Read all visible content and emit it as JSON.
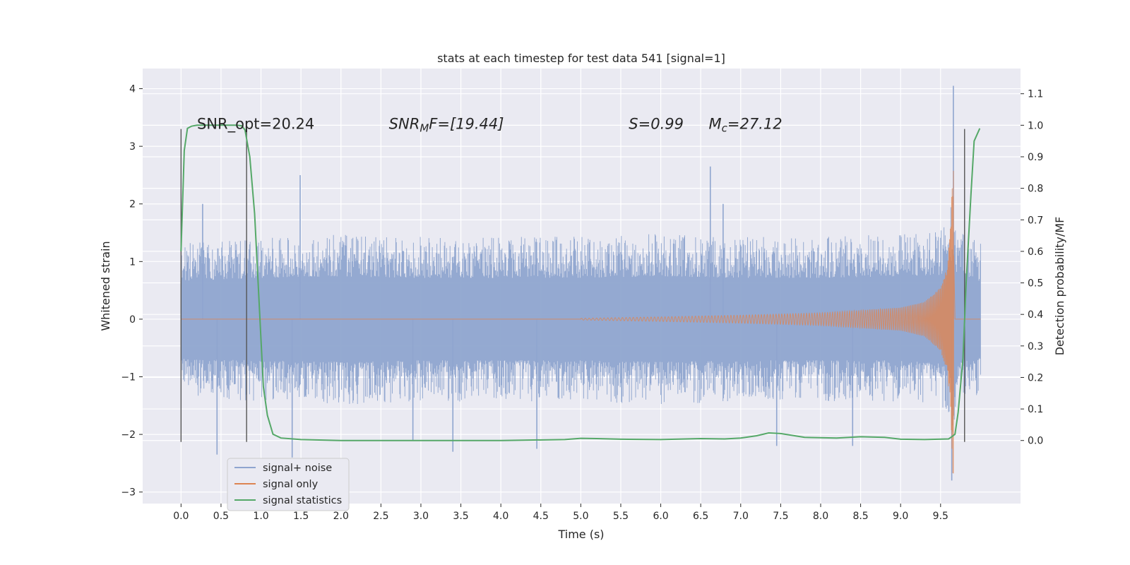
{
  "chart_data": {
    "type": "line",
    "title": "stats at each timestep for test data 541 [signal=1]",
    "xlabel": "Time (s)",
    "ylabel": "Whitened strain",
    "y2label": "Detection probability/MF",
    "xlim": [
      -0.48,
      10.5
    ],
    "ylim": [
      -3.2,
      4.35
    ],
    "y2lim": [
      -0.2,
      1.18
    ],
    "xticks": [
      "0.0",
      "0.5",
      "1.0",
      "1.5",
      "2.0",
      "2.5",
      "3.0",
      "3.5",
      "4.0",
      "4.5",
      "5.0",
      "5.5",
      "6.0",
      "6.5",
      "7.0",
      "7.5",
      "8.0",
      "8.5",
      "9.0",
      "9.5"
    ],
    "yticks": [
      "−3",
      "−2",
      "−1",
      "0",
      "1",
      "2",
      "3",
      "4"
    ],
    "y2ticks": [
      "0.0",
      "0.1",
      "0.2",
      "0.3",
      "0.4",
      "0.5",
      "0.6",
      "0.7",
      "0.8",
      "0.9",
      "1.0",
      "1.1"
    ],
    "grid": true,
    "legend_placement": "lower-left",
    "colors": {
      "noise": "#8fa5cf",
      "signal": "#dd8452",
      "stat": "#55a868",
      "vline": "#555555",
      "background": "#eaeaf2"
    },
    "series": [
      {
        "name": "signal+ noise",
        "envelope": {
          "t": [
            0.0,
            1.0,
            2.0,
            3.0,
            4.0,
            5.0,
            6.0,
            7.0,
            8.0,
            9.0,
            9.5,
            9.6,
            9.66,
            9.7,
            10.0
          ],
          "upper": [
            1.2,
            1.3,
            1.35,
            1.3,
            1.3,
            1.3,
            1.35,
            1.3,
            1.3,
            1.35,
            1.4,
            1.6,
            2.0,
            1.4,
            1.2
          ],
          "lower": [
            -1.25,
            -1.3,
            -1.35,
            -1.3,
            -1.3,
            -1.3,
            -1.35,
            -1.3,
            -1.3,
            -1.3,
            -1.4,
            -1.6,
            -2.0,
            -1.4,
            -1.2
          ]
        },
        "peaks": [
          {
            "t": 0.27,
            "v": 2.0
          },
          {
            "t": 0.45,
            "v": -2.35
          },
          {
            "t": 1.39,
            "v": -2.4
          },
          {
            "t": 1.49,
            "v": 2.5
          },
          {
            "t": 2.9,
            "v": -2.1
          },
          {
            "t": 3.4,
            "v": -2.3
          },
          {
            "t": 4.45,
            "v": -2.25
          },
          {
            "t": 6.62,
            "v": 2.65
          },
          {
            "t": 6.78,
            "v": 2.0
          },
          {
            "t": 7.45,
            "v": -2.2
          },
          {
            "t": 8.4,
            "v": -2.2
          },
          {
            "t": 9.66,
            "v": 4.05
          },
          {
            "t": 9.64,
            "v": -2.8
          }
        ]
      },
      {
        "name": "signal only",
        "t": [
          5.0,
          6.0,
          7.0,
          8.0,
          9.0,
          9.3,
          9.5,
          9.58,
          9.62,
          9.65,
          9.665
        ],
        "amplitude": [
          0.015,
          0.04,
          0.07,
          0.11,
          0.2,
          0.3,
          0.55,
          0.9,
          1.5,
          2.6,
          2.9
        ]
      },
      {
        "name": "signal statistics",
        "t": [
          0.0,
          0.04,
          0.08,
          0.13,
          0.2,
          0.3,
          0.5,
          0.7,
          0.76,
          0.8,
          0.86,
          0.92,
          0.98,
          1.03,
          1.08,
          1.15,
          1.25,
          1.5,
          2.0,
          3.0,
          4.0,
          4.8,
          5.0,
          5.2,
          5.5,
          6.0,
          6.5,
          6.8,
          7.0,
          7.2,
          7.35,
          7.5,
          7.8,
          8.2,
          8.5,
          8.8,
          9.0,
          9.3,
          9.6,
          9.64,
          9.68,
          9.72,
          9.78,
          9.82,
          9.88,
          9.92,
          9.99
        ],
        "values": [
          0.6,
          0.92,
          0.99,
          0.997,
          1.0,
          1.0,
          1.0,
          1.0,
          0.998,
          0.985,
          0.9,
          0.72,
          0.42,
          0.17,
          0.08,
          0.02,
          0.008,
          0.003,
          0.0,
          0.0,
          0.0,
          0.003,
          0.007,
          0.006,
          0.004,
          0.003,
          0.006,
          0.005,
          0.008,
          0.015,
          0.024,
          0.022,
          0.01,
          0.008,
          0.012,
          0.01,
          0.004,
          0.003,
          0.005,
          0.012,
          0.02,
          0.09,
          0.26,
          0.5,
          0.78,
          0.95,
          0.99
        ]
      }
    ],
    "vlines": [
      0.0,
      0.82,
      9.8
    ],
    "annotations": [
      {
        "t": 0.2,
        "text": "SNR_opt=20.24"
      },
      {
        "t": 2.6,
        "html": "SNR<tspan font-size='15' dy='4'>M</tspan><tspan dy='-4'>F=[19.44]</tspan>"
      },
      {
        "t": 5.6,
        "html": "S=0.99"
      },
      {
        "t": 6.6,
        "html": "M<tspan font-size='15' dy='4'>c</tspan><tspan dy='-4'>=27.12</tspan>"
      }
    ]
  }
}
